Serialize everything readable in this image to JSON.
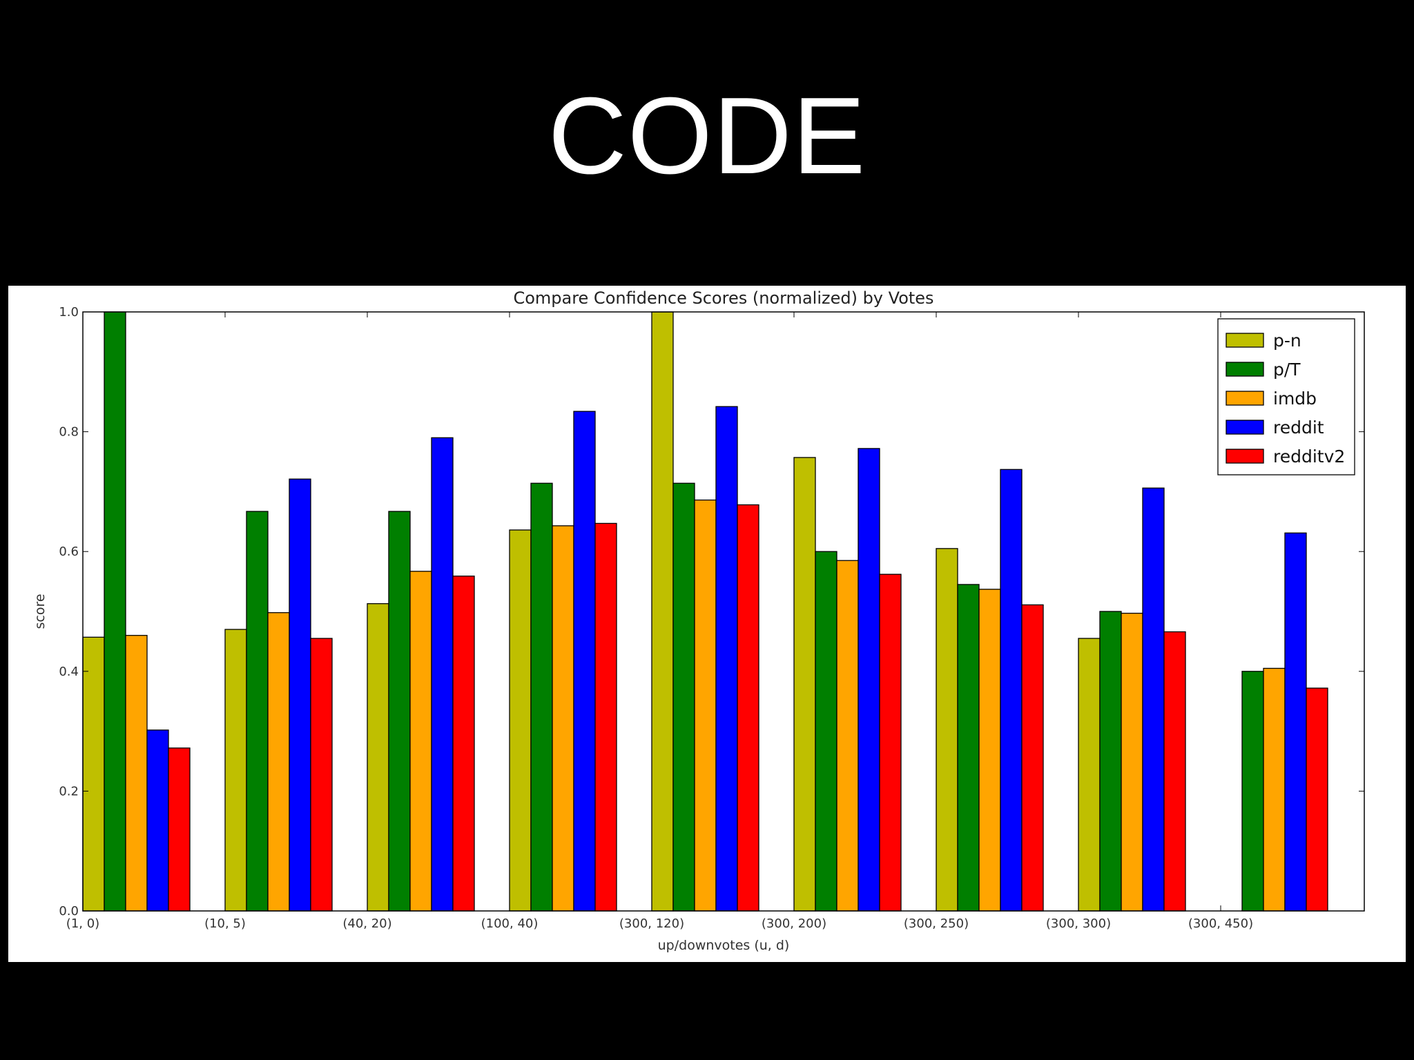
{
  "slide": {
    "title": "CODE"
  },
  "colors": {
    "background": "#000000",
    "panel": "#ffffff",
    "p-n": "#bfbf00",
    "p/T": "#007f00",
    "imdb": "#ffa500",
    "reddit": "#0000ff",
    "redditv2": "#ff0000"
  },
  "chart_data": {
    "type": "bar",
    "title": "Compare Confidence Scores (normalized) by Votes",
    "xlabel": "up/downvotes (u, d)",
    "ylabel": "score",
    "ylim": [
      0,
      1.0
    ],
    "yticks": [
      "0.0",
      "0.2",
      "0.4",
      "0.6",
      "0.8",
      "1.0"
    ],
    "grid": false,
    "legend_position": "top-right",
    "categories": [
      "(1, 0)",
      "(10, 5)",
      "(40, 20)",
      "(100, 40)",
      "(300, 120)",
      "(300, 200)",
      "(300, 250)",
      "(300, 300)",
      "(300, 450)"
    ],
    "series": [
      {
        "name": "p-n",
        "color": "#bfbf00",
        "values": [
          0.457,
          0.47,
          0.513,
          0.636,
          1.0,
          0.757,
          0.605,
          0.455,
          0.0
        ]
      },
      {
        "name": "p/T",
        "color": "#007f00",
        "values": [
          1.0,
          0.667,
          0.667,
          0.714,
          0.714,
          0.6,
          0.545,
          0.5,
          0.4
        ]
      },
      {
        "name": "imdb",
        "color": "#ffa500",
        "values": [
          0.46,
          0.498,
          0.567,
          0.643,
          0.686,
          0.585,
          0.537,
          0.497,
          0.405
        ]
      },
      {
        "name": "reddit",
        "color": "#0000ff",
        "values": [
          0.302,
          0.721,
          0.79,
          0.834,
          0.842,
          0.772,
          0.737,
          0.706,
          0.631
        ]
      },
      {
        "name": "redditv2",
        "color": "#ff0000",
        "values": [
          0.272,
          0.455,
          0.559,
          0.647,
          0.678,
          0.562,
          0.511,
          0.466,
          0.372
        ]
      }
    ]
  }
}
